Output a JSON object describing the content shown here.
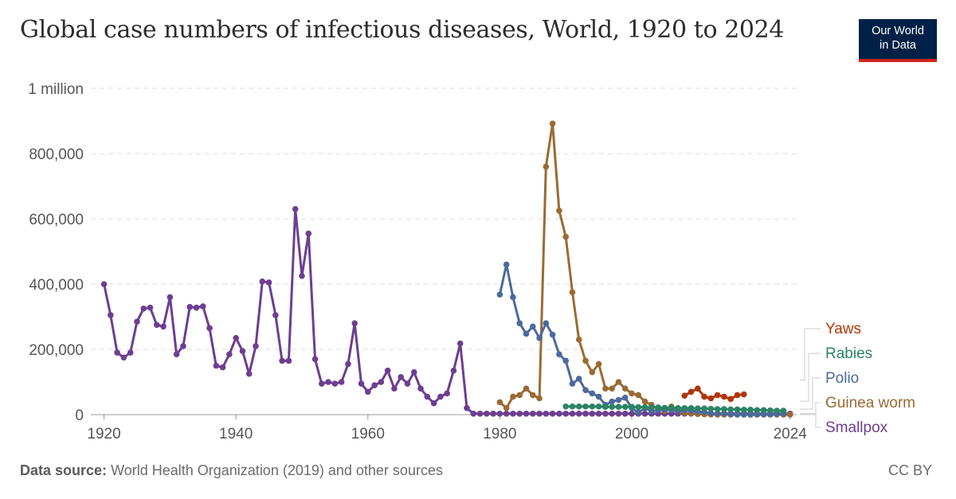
{
  "header": {
    "title": "Global case numbers of infectious diseases, World, 1920 to 2024",
    "logo_line1": "Our World",
    "logo_line2": "in Data"
  },
  "footer": {
    "source_label": "Data source:",
    "source_text": "World Health Organization (2019) and other sources",
    "license": "CC BY"
  },
  "chart_data": {
    "type": "line",
    "title": "Global case numbers of infectious diseases, World, 1920 to 2024",
    "ylim": [
      0,
      1000000
    ],
    "xlim": [
      1918,
      2025
    ],
    "y_ticks": [
      0,
      200000,
      400000,
      600000,
      800000,
      1000000
    ],
    "y_tick_labels": [
      "0",
      "200,000",
      "400,000",
      "600,000",
      "800,000",
      "1 million"
    ],
    "x_ticks": [
      1920,
      1940,
      1960,
      1980,
      2000,
      2024
    ],
    "x_tick_labels": [
      "1920",
      "1940",
      "1960",
      "1980",
      "2000",
      "2024"
    ],
    "grid": true,
    "legend_position": "right",
    "series": [
      {
        "name": "Yaws",
        "color": "#b13507",
        "x": [
          2008,
          2009,
          2010,
          2011,
          2012,
          2013,
          2014,
          2015,
          2016,
          2017
        ],
        "y": [
          58000,
          70000,
          80000,
          55000,
          50000,
          60000,
          55000,
          48000,
          60000,
          62000
        ]
      },
      {
        "name": "Rabies",
        "color": "#2c8465",
        "x": [
          1990,
          1991,
          1992,
          1993,
          1994,
          1995,
          1996,
          1997,
          1998,
          1999,
          2000,
          2001,
          2002,
          2003,
          2004,
          2005,
          2006,
          2007,
          2008,
          2009,
          2010,
          2011,
          2012,
          2013,
          2014,
          2015,
          2016,
          2017,
          2018,
          2019,
          2020,
          2021,
          2022,
          2023
        ],
        "y": [
          25000,
          25000,
          25000,
          25000,
          25000,
          25000,
          24000,
          24000,
          24000,
          24000,
          24000,
          23000,
          23000,
          22000,
          22000,
          21000,
          21000,
          20000,
          20000,
          20000,
          19000,
          19000,
          18000,
          17000,
          17000,
          16000,
          16000,
          15000,
          15000,
          14000,
          14000,
          13000,
          12000,
          12000
        ]
      },
      {
        "name": "Polio",
        "color": "#4c6a9c",
        "x": [
          1980,
          1981,
          1982,
          1983,
          1984,
          1985,
          1986,
          1987,
          1988,
          1989,
          1990,
          1991,
          1992,
          1993,
          1994,
          1995,
          1996,
          1997,
          1998,
          1999,
          2000,
          2001,
          2002,
          2003,
          2004,
          2005,
          2006,
          2007,
          2008,
          2009,
          2010,
          2011,
          2012,
          2013,
          2014,
          2015,
          2016,
          2017,
          2018,
          2019,
          2020,
          2021,
          2022,
          2023
        ],
        "y": [
          368000,
          460000,
          360000,
          280000,
          248000,
          270000,
          235000,
          280000,
          245000,
          185000,
          165000,
          95000,
          110000,
          75000,
          65000,
          55000,
          30000,
          40000,
          45000,
          52000,
          20000,
          6000,
          20000,
          10000,
          14000,
          16000,
          14000,
          11000,
          14000,
          12000,
          10000,
          8000,
          4000,
          3000,
          4000,
          1000,
          500,
          300,
          150,
          350,
          1100,
          700,
          2000,
          2500
        ]
      },
      {
        "name": "Guinea worm",
        "color": "#9a6b34",
        "x": [
          1980,
          1981,
          1982,
          1983,
          1984,
          1985,
          1986,
          1987,
          1988,
          1989,
          1990,
          1991,
          1992,
          1993,
          1994,
          1995,
          1996,
          1997,
          1998,
          1999,
          2000,
          2001,
          2002,
          2003,
          2004,
          2005,
          2006,
          2007,
          2008,
          2009,
          2010,
          2011,
          2012,
          2013,
          2014,
          2015,
          2016,
          2017,
          2018,
          2019,
          2020,
          2021,
          2022,
          2023,
          2024
        ],
        "y": [
          38000,
          20000,
          55000,
          60000,
          80000,
          60000,
          50000,
          760000,
          892000,
          625000,
          545000,
          375000,
          230000,
          165000,
          130000,
          155000,
          80000,
          80000,
          100000,
          80000,
          65000,
          60000,
          40000,
          30000,
          16000,
          11000,
          25000,
          10000,
          5000,
          3200,
          1800,
          1050,
          540,
          150,
          126,
          22,
          25,
          30,
          28,
          54,
          27,
          15,
          13,
          14,
          10
        ]
      },
      {
        "name": "Smallpox",
        "color": "#6d3e91",
        "x": [
          1920,
          1921,
          1922,
          1923,
          1924,
          1925,
          1926,
          1927,
          1928,
          1929,
          1930,
          1931,
          1932,
          1933,
          1934,
          1935,
          1936,
          1937,
          1938,
          1939,
          1940,
          1941,
          1942,
          1943,
          1944,
          1945,
          1946,
          1947,
          1948,
          1949,
          1950,
          1951,
          1952,
          1953,
          1954,
          1955,
          1956,
          1957,
          1958,
          1959,
          1960,
          1961,
          1962,
          1963,
          1964,
          1965,
          1966,
          1967,
          1968,
          1969,
          1970,
          1971,
          1972,
          1973,
          1974,
          1975,
          1976,
          1977,
          1978,
          1979,
          1980,
          1981,
          1982,
          1983,
          1984,
          1985,
          1986,
          1987,
          1988,
          1989,
          1990,
          1991,
          1992,
          1993,
          1994,
          1995,
          1996,
          1997,
          1998,
          1999,
          2000,
          2001,
          2002,
          2003,
          2004,
          2005,
          2006,
          2007,
          2008,
          2009,
          2010,
          2011,
          2012,
          2013,
          2014,
          2015,
          2016,
          2017,
          2018,
          2019,
          2020,
          2021,
          2022,
          2023,
          2024
        ],
        "y": [
          400000,
          305000,
          190000,
          175000,
          190000,
          285000,
          325000,
          328000,
          275000,
          270000,
          360000,
          185000,
          210000,
          330000,
          328000,
          332000,
          265000,
          150000,
          145000,
          185000,
          235000,
          195000,
          125000,
          210000,
          408000,
          405000,
          305000,
          165000,
          165000,
          630000,
          425000,
          555000,
          170000,
          95000,
          100000,
          95000,
          100000,
          155000,
          280000,
          95000,
          70000,
          90000,
          100000,
          135000,
          80000,
          115000,
          95000,
          130000,
          80000,
          55000,
          35000,
          55000,
          65000,
          135000,
          218000,
          20000,
          3000,
          3000,
          3000,
          3000,
          3000,
          3000,
          3000,
          3000,
          3000,
          3000,
          3000,
          3000,
          3000,
          3000,
          3000,
          3000,
          3000,
          3000,
          3000,
          3000,
          3000,
          3000,
          3000,
          3000,
          3000,
          3000,
          3000,
          3000,
          3000,
          3000,
          3000,
          3000,
          3000,
          3000,
          3000,
          3000,
          3000,
          3000,
          3000,
          3000,
          3000,
          3000,
          3000,
          3000,
          3000,
          3000,
          3000,
          3000,
          3000
        ]
      }
    ]
  }
}
